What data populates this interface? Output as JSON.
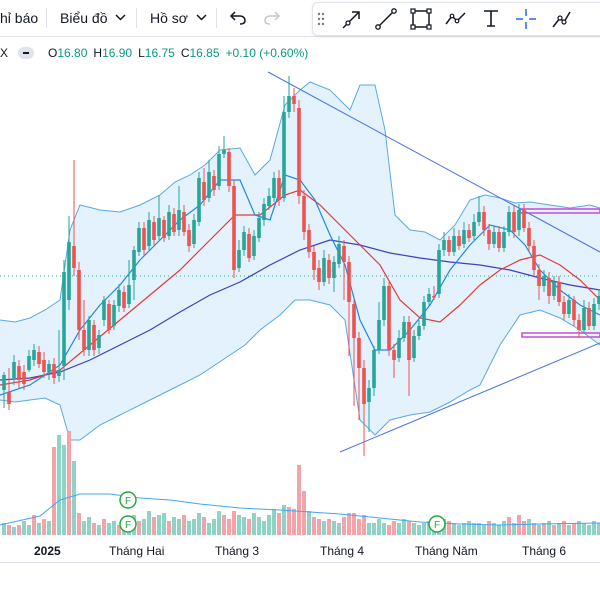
{
  "toolbar": {
    "indicators_label": "hỉ báo",
    "charts_label": "Biểu đồ",
    "profile_label": "Hồ sơ",
    "icons": [
      "chevron-down-icon",
      "undo-icon",
      "redo-icon",
      "menu-dots-icon",
      "arrow-line-icon",
      "trend-line-icon",
      "rectangle-icon",
      "path-icon",
      "text-icon",
      "crosshair-icon",
      "brush-icon"
    ]
  },
  "legend": {
    "symbol_partial": "X",
    "o_label": "O",
    "o_value": "16.80",
    "h_label": "H",
    "h_value": "16.90",
    "l_label": "L",
    "l_value": "16.75",
    "c_label": "C",
    "c_value": "16.85",
    "change": "+0.10 (+0.60%)"
  },
  "time_axis": {
    "labels": [
      "2025",
      "Tháng Hai",
      "Tháng 3",
      "Tháng 4",
      "Tháng Năm",
      "Tháng 6"
    ],
    "bold_label": "2025"
  },
  "markers": {
    "dividend_label": "F"
  },
  "colors": {
    "up": "#26a69a",
    "down": "#ef5350",
    "ma_fast": "#1e88e5",
    "ma_mid": "#e53935",
    "ma_slow": "#3f3fc0",
    "bollinger": "#5aa8e6",
    "bollinger_fill": "#e3f2fd",
    "trendline": "#4a72e8",
    "zone": "#c050d0",
    "vol_up": "#8fd3c7",
    "vol_down": "#f4a3a8"
  }
}
